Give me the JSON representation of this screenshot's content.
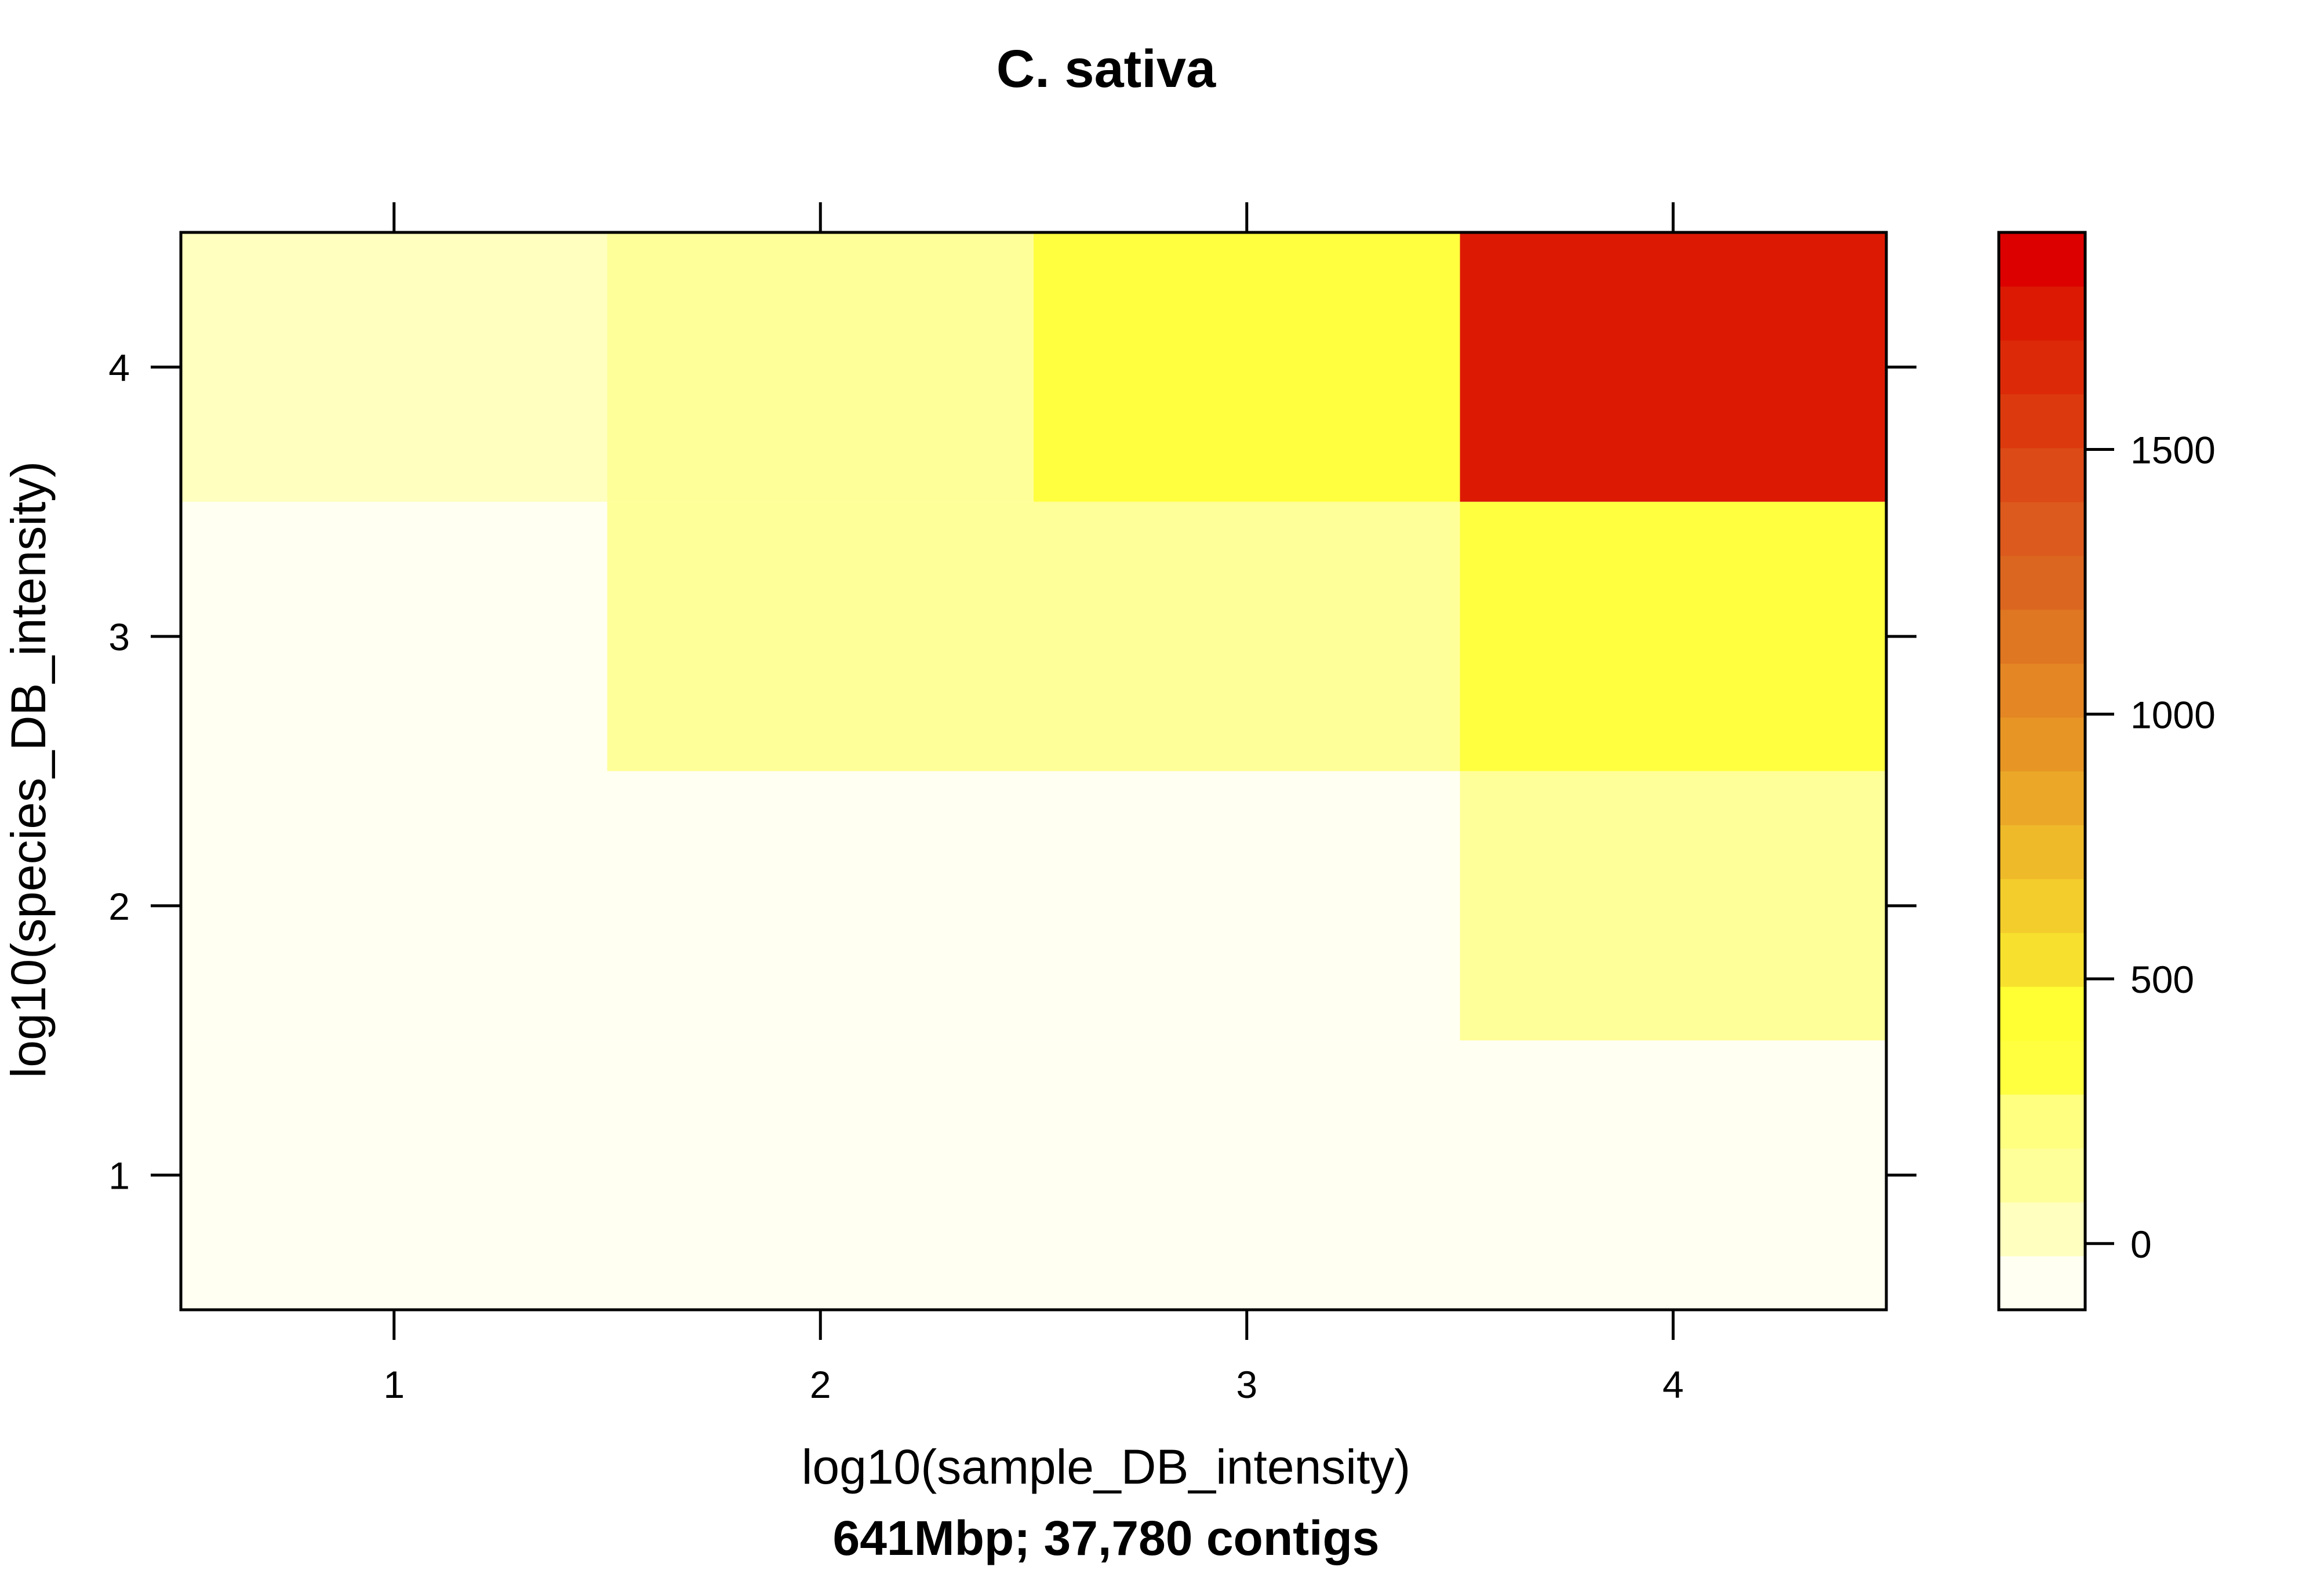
{
  "chart_data": {
    "type": "heatmap",
    "title": "C. sativa",
    "xlabel": "log10(sample_DB_intensity)",
    "ylabel": "log10(species_DB_intensity)",
    "subtitle": "641Mbp; 37,780 contigs",
    "x": [
      1,
      2,
      3,
      4
    ],
    "y": [
      1,
      2,
      3,
      4
    ],
    "x_ticks": [
      "1",
      "2",
      "3",
      "4"
    ],
    "y_ticks": [
      "1",
      "2",
      "3",
      "4"
    ],
    "xlim": [
      0.5,
      4.5
    ],
    "ylim": [
      0.5,
      4.5
    ],
    "z": [
      [
        -120,
        -120,
        -120,
        -120
      ],
      [
        -120,
        -120,
        -30,
        100
      ],
      [
        -120,
        100,
        100,
        300
      ],
      [
        -20,
        100,
        300,
        1750
      ]
    ],
    "colorbar": {
      "range": [
        -125,
        1910
      ],
      "ticks": [
        0,
        500,
        1000,
        1500
      ],
      "tick_labels": [
        "0",
        "500",
        "1000",
        "1500"
      ],
      "colors": [
        "#FFFFF2",
        "#FFFFBF",
        "#FFFF99",
        "#FFFF80",
        "#FFFF40",
        "#FFFF33",
        "#F7E12E",
        "#F3CD2C",
        "#EFBA2A",
        "#EBA828",
        "#E79625",
        "#E38623",
        "#DF7621",
        "#DB661F",
        "#DC5A1D",
        "#DC4A17",
        "#DC3A0E",
        "#DC2A08",
        "#DC1A04",
        "#DC0000"
      ]
    },
    "grid": false,
    "legend": "colorbar-right"
  }
}
